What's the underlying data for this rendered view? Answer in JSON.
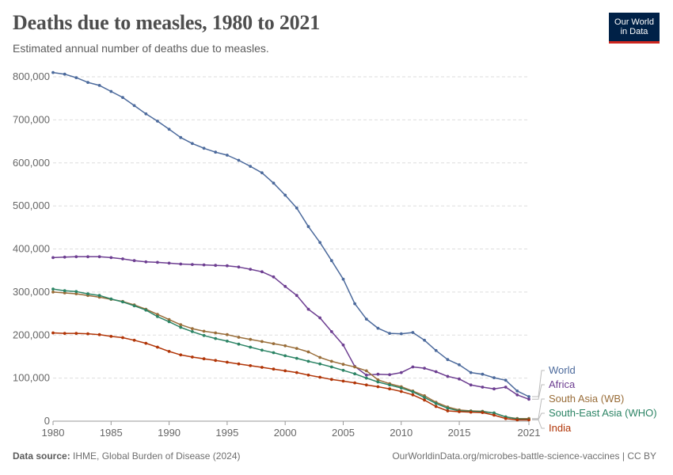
{
  "header": {
    "title": "Deaths due to measles, 1980 to 2021",
    "subtitle": "Estimated annual number of deaths due to measles."
  },
  "logo": {
    "line1": "Our World",
    "line2": "in Data"
  },
  "footer": {
    "source_label": "Data source:",
    "source_text": "IHME, Global Burden of Disease (2024)",
    "url": "OurWorldinData.org/microbes-battle-science-vaccines | CC BY"
  },
  "colors": {
    "World": "#4c6a9c",
    "Africa": "#6d3e91",
    "South Asia (WB)": "#996d39",
    "South-East Asia (WHO)": "#2c8465",
    "India": "#b13507"
  },
  "chart_data": {
    "type": "line",
    "title": "Deaths due to measles, 1980 to 2021",
    "subtitle": "Estimated annual number of deaths due to measles.",
    "x": [
      1980,
      1981,
      1982,
      1983,
      1984,
      1985,
      1986,
      1987,
      1988,
      1989,
      1990,
      1991,
      1992,
      1993,
      1994,
      1995,
      1996,
      1997,
      1998,
      1999,
      2000,
      2001,
      2002,
      2003,
      2004,
      2005,
      2006,
      2007,
      2008,
      2009,
      2010,
      2011,
      2012,
      2013,
      2014,
      2015,
      2016,
      2017,
      2018,
      2019,
      2020,
      2021
    ],
    "xlim": [
      1980,
      2021
    ],
    "xticks": [
      "1980",
      "1985",
      "1990",
      "1995",
      "2000",
      "2005",
      "2010",
      "2015",
      "2021"
    ],
    "ylim": [
      0,
      800000
    ],
    "yticks": [
      0,
      100000,
      200000,
      300000,
      400000,
      500000,
      600000,
      700000,
      800000
    ],
    "ytick_labels": [
      "0",
      "100,000",
      "200,000",
      "300,000",
      "400,000",
      "500,000",
      "600,000",
      "700,000",
      "800,000"
    ],
    "grid": "horizontal dashed",
    "legend": "right, end of lines",
    "series": [
      {
        "name": "World",
        "values": [
          810000,
          806000,
          798000,
          787000,
          780000,
          766000,
          752000,
          733000,
          714000,
          697000,
          678000,
          659000,
          645000,
          634000,
          625000,
          618000,
          606000,
          592000,
          577000,
          553000,
          525000,
          495000,
          452000,
          415000,
          373000,
          330000,
          273000,
          237000,
          216000,
          204000,
          203000,
          206000,
          188000,
          164000,
          143000,
          131000,
          113000,
          109000,
          101000,
          95000,
          70000,
          57000
        ]
      },
      {
        "name": "Africa",
        "values": [
          380000,
          381000,
          382000,
          382000,
          382000,
          380000,
          377000,
          373000,
          370000,
          369000,
          367000,
          365000,
          364000,
          363000,
          362000,
          361000,
          358000,
          353000,
          347000,
          335000,
          313000,
          292000,
          260000,
          240000,
          208000,
          177000,
          127000,
          107000,
          109000,
          108000,
          113000,
          126000,
          123000,
          115000,
          104000,
          98000,
          84000,
          79000,
          75000,
          79000,
          61000,
          51000
        ]
      },
      {
        "name": "South Asia (WB)",
        "values": [
          300000,
          298000,
          296000,
          292000,
          288000,
          283000,
          278000,
          270000,
          260000,
          248000,
          236000,
          224000,
          215000,
          209000,
          205000,
          201000,
          195000,
          190000,
          185000,
          180000,
          175000,
          169000,
          161000,
          148000,
          139000,
          132000,
          126000,
          117000,
          96000,
          87000,
          80000,
          70000,
          59000,
          44000,
          33000,
          26000,
          24000,
          23000,
          19000,
          10000,
          6000,
          6000
        ]
      },
      {
        "name": "South-East Asia (WHO)",
        "values": [
          307000,
          303000,
          301000,
          296000,
          292000,
          284000,
          277000,
          268000,
          258000,
          243000,
          231000,
          218000,
          208000,
          199000,
          192000,
          186000,
          179000,
          172000,
          165000,
          159000,
          152000,
          146000,
          139000,
          133000,
          126000,
          118000,
          110000,
          100000,
          91000,
          84000,
          77000,
          68000,
          55000,
          41000,
          30000,
          24000,
          23000,
          22000,
          19000,
          10000,
          5000,
          4000
        ]
      },
      {
        "name": "India",
        "values": [
          205000,
          204000,
          204000,
          203000,
          201000,
          197000,
          194000,
          188000,
          181000,
          172000,
          162000,
          154000,
          149000,
          145000,
          141000,
          137000,
          133000,
          129000,
          125000,
          121000,
          117000,
          113000,
          107000,
          102000,
          97000,
          93000,
          89000,
          84000,
          80000,
          75000,
          69000,
          61000,
          49000,
          34000,
          24000,
          22000,
          21000,
          20000,
          14000,
          6000,
          3000,
          3000
        ]
      }
    ]
  }
}
